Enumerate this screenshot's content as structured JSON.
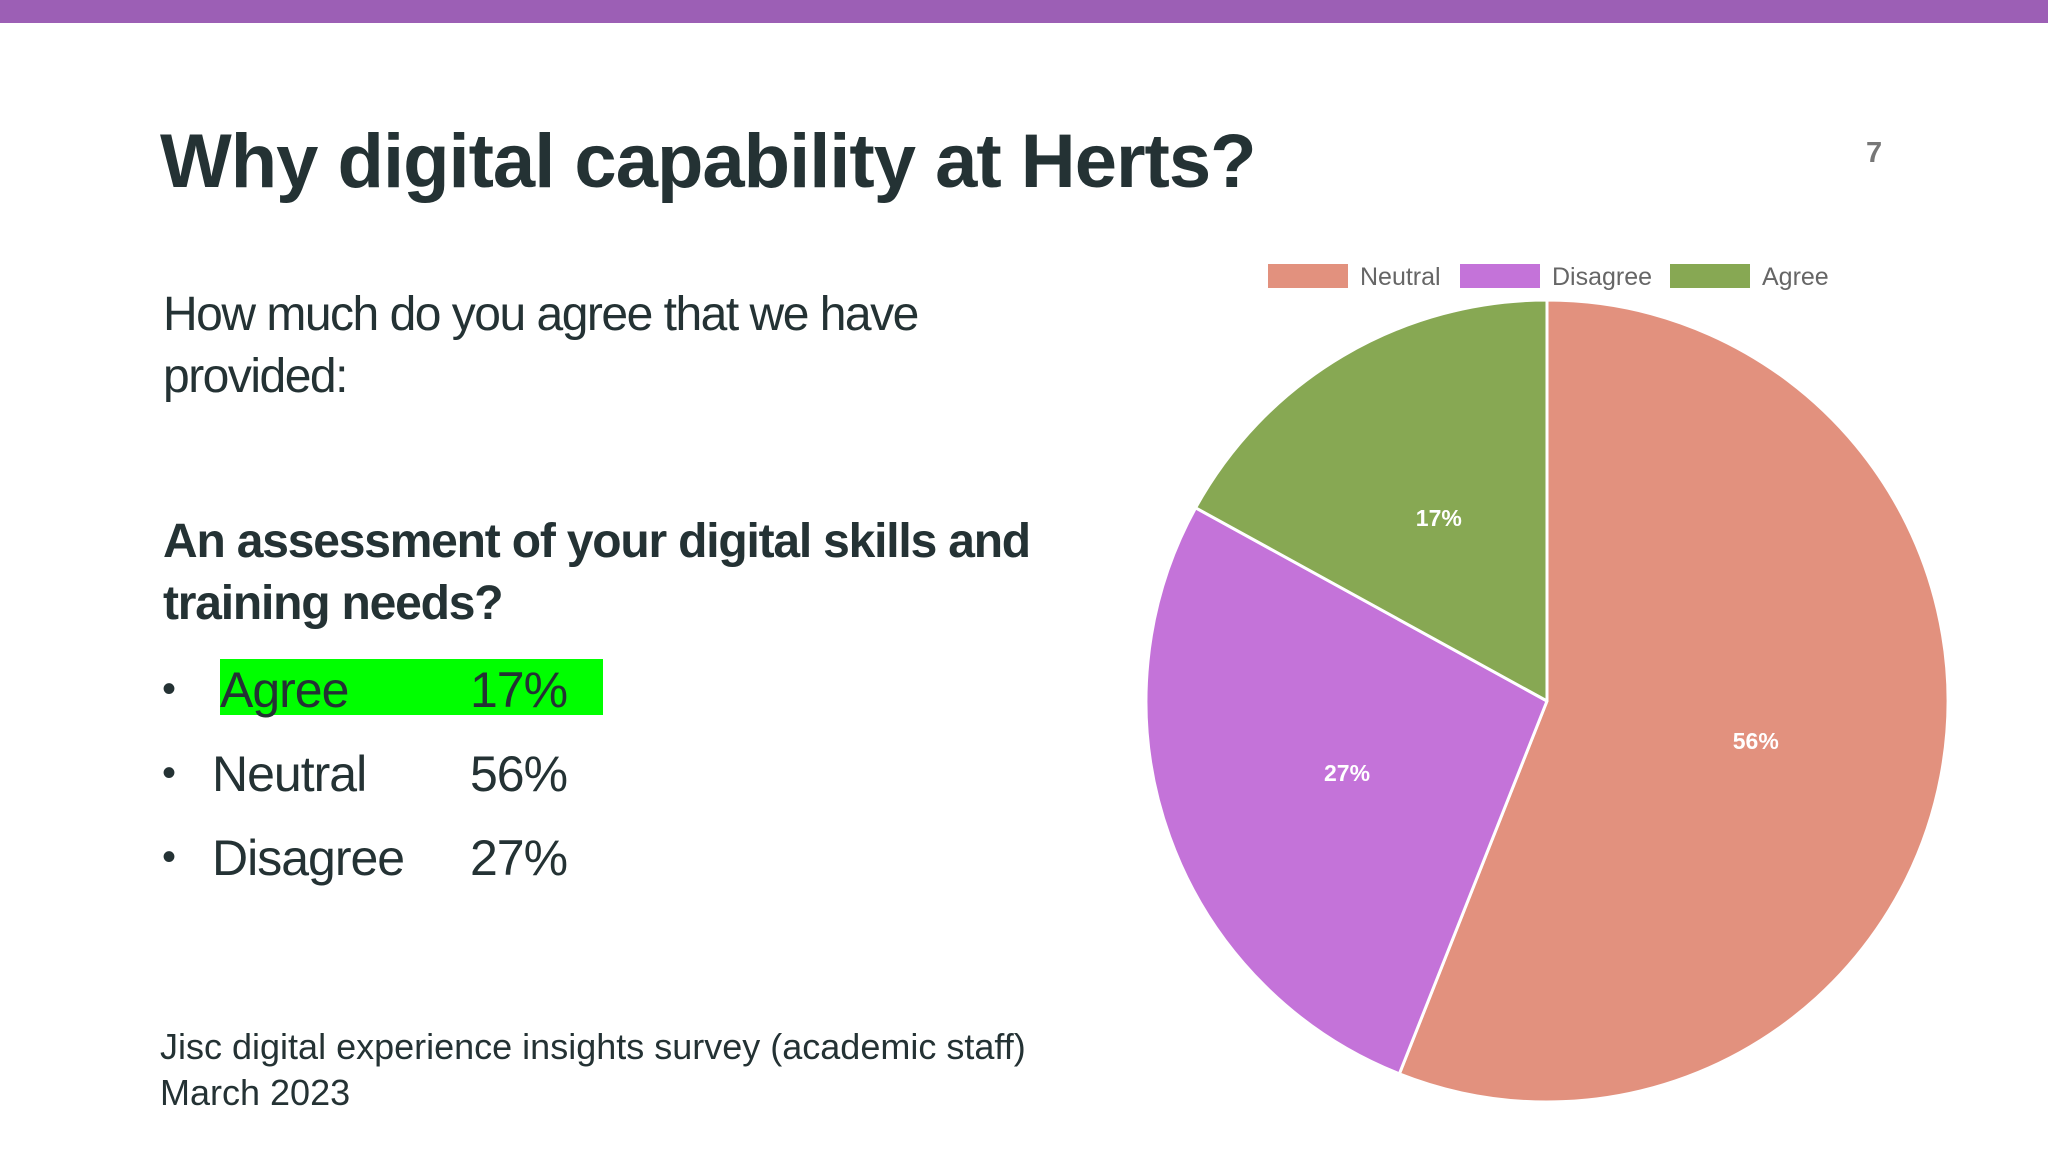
{
  "colors": {
    "top_bar": "#9C5FB5",
    "highlight": "#00FF00",
    "neutral": "#E2917E",
    "disagree": "#C473D9",
    "agree": "#87A853"
  },
  "slide": {
    "title": "Why digital capability at Herts?",
    "number": "7",
    "intro": "How much do you agree that we have provided:",
    "question": "An assessment of your digital skills and training needs?",
    "results": [
      {
        "label": "Agree",
        "value": "17%"
      },
      {
        "label": "Neutral",
        "value": "56%"
      },
      {
        "label": "Disagree",
        "value": "27%"
      }
    ],
    "source_line1": "Jisc digital experience insights survey (academic staff)",
    "source_line2": "March 2023"
  },
  "chart_data": {
    "type": "pie",
    "legend_position": "top",
    "categories": [
      "Neutral",
      "Disagree",
      "Agree"
    ],
    "values": [
      56,
      27,
      17
    ],
    "labels": [
      "56%",
      "27%",
      "17%"
    ]
  }
}
